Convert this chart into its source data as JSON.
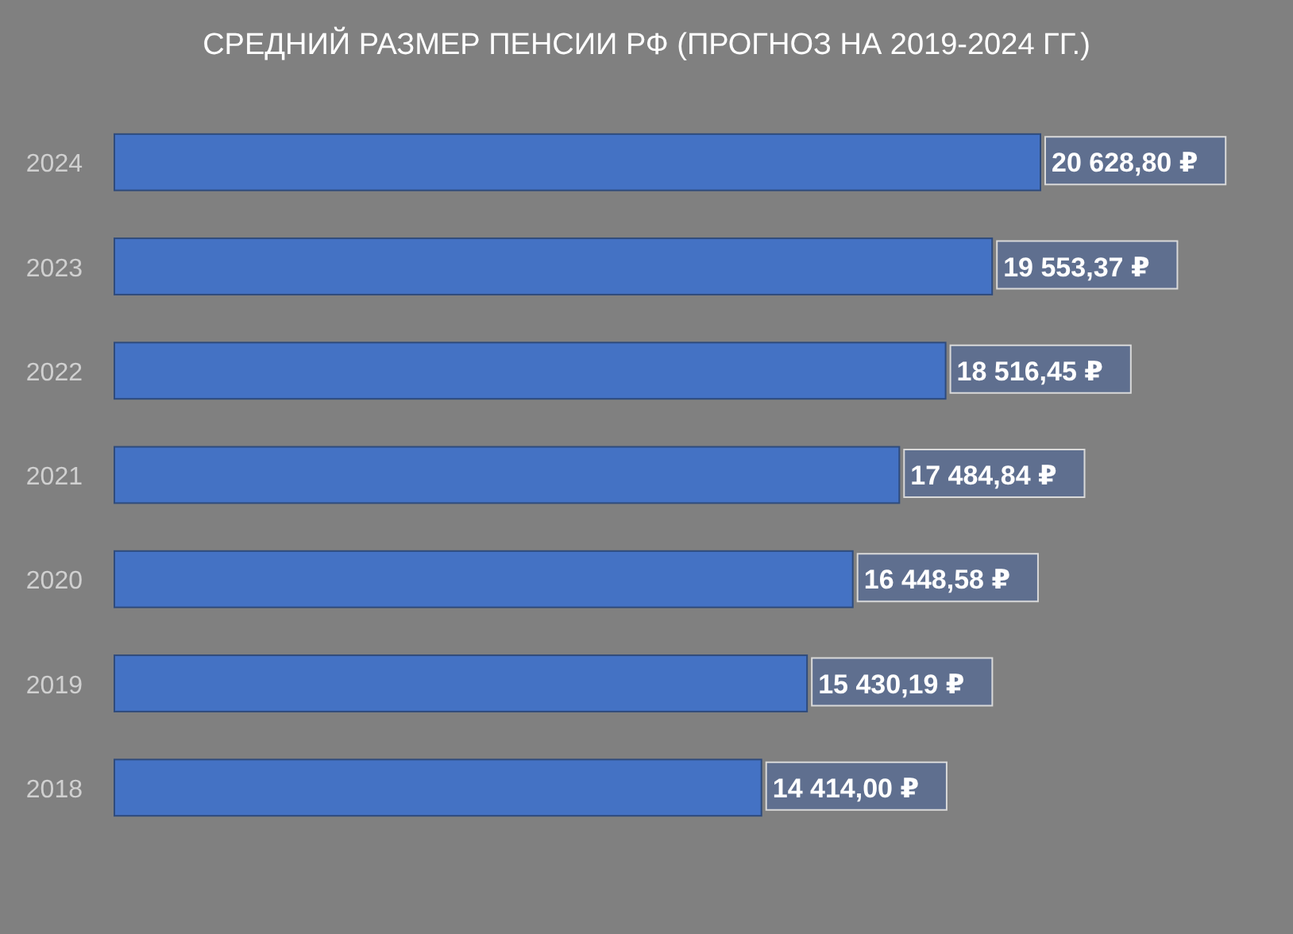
{
  "chart_data": {
    "type": "bar",
    "orientation": "horizontal",
    "title": "СРЕДНИЙ РАЗМЕР ПЕНСИИ РФ (ПРОГНОЗ НА 2019-2024 ГГ.)",
    "categories": [
      "2024",
      "2023",
      "2022",
      "2021",
      "2020",
      "2019",
      "2018"
    ],
    "values": [
      20628.8,
      19553.37,
      18516.45,
      17484.84,
      16448.58,
      15430.19,
      14414.0
    ],
    "value_labels": [
      "20 628,80 ₽",
      "19 553,37 ₽",
      "18 516,45 ₽",
      "17 484,84 ₽",
      "16 448,58 ₽",
      "15 430,19 ₽",
      "14 414,00 ₽"
    ],
    "color": "#4472c4",
    "tick_labels": "y"
  }
}
